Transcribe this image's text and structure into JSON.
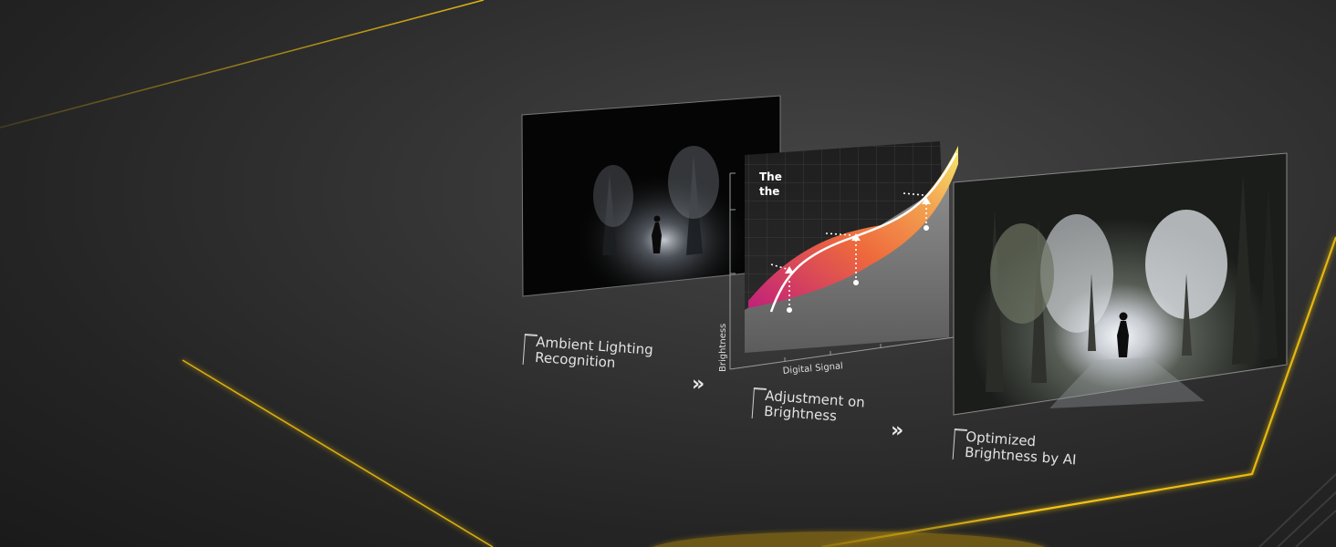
{
  "steps": [
    {
      "line1": "Ambient Lighting",
      "line2": "Recognition"
    },
    {
      "line1": "Adjustment on",
      "line2": "Brightness"
    },
    {
      "line1": "Optimized",
      "line2": "Brightness by AI"
    }
  ],
  "graph": {
    "text_line1": "The",
    "text_line2": "the",
    "y_axis_label": "Brightness",
    "x_axis_label": "Digital Signal"
  },
  "arrows": [
    "»",
    "»"
  ],
  "colors": {
    "accent_line": "#f2c10f",
    "curve_start": "#c0207a",
    "curve_mid": "#f07a3a",
    "curve_end": "#f5e86a"
  },
  "icons": [
    "double-chevron-right-icon",
    "double-chevron-right-icon"
  ]
}
